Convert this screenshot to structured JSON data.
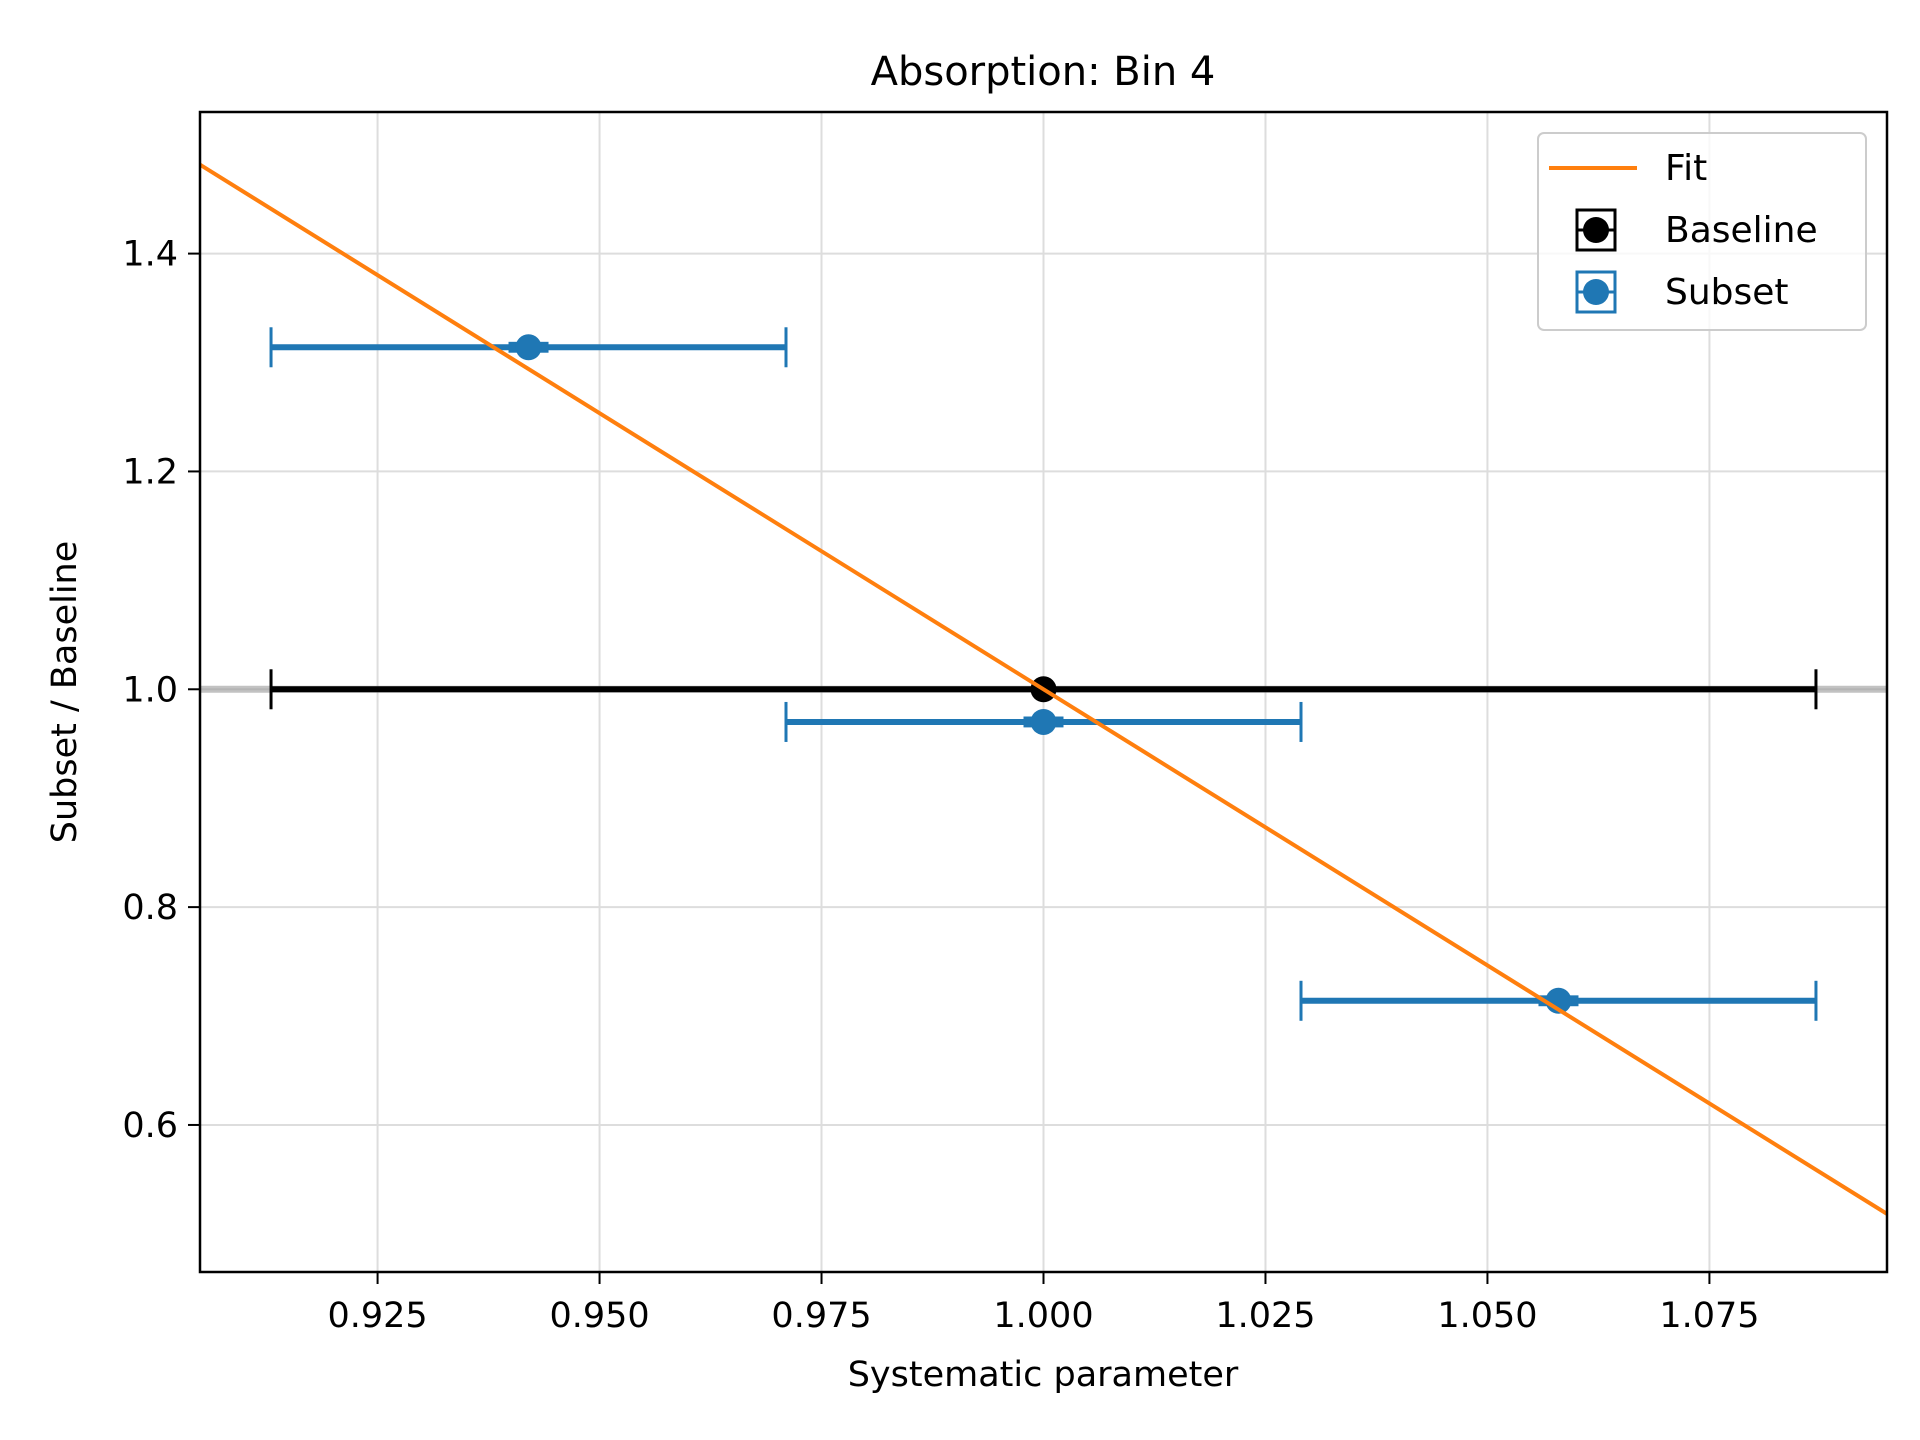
{
  "chart_data": {
    "type": "scatter",
    "title": "Absorption: Bin 4",
    "xlabel": "Systematic parameter",
    "ylabel": "Subset / Baseline",
    "xlim": [
      0.905,
      1.095
    ],
    "ylim": [
      0.465,
      1.53
    ],
    "xticks": [
      0.925,
      0.95,
      0.975,
      1.0,
      1.025,
      1.05,
      1.075
    ],
    "xtick_labels": [
      "0.925",
      "0.950",
      "0.975",
      "1.000",
      "1.025",
      "1.050",
      "1.075"
    ],
    "yticks": [
      0.6,
      0.8,
      1.0,
      1.2,
      1.4
    ],
    "ytick_labels": [
      "0.6",
      "0.8",
      "1.0",
      "1.2",
      "1.4"
    ],
    "grid": true,
    "reference_line_y": 1.0,
    "legend_position": "top-right",
    "fit": {
      "name": "Fit",
      "color": "#ff7f0e",
      "slope": -5.07,
      "intercept": 6.07
    },
    "series": [
      {
        "name": "Baseline",
        "color": "#000000",
        "points": [
          {
            "x": 1.0,
            "y": 1.0,
            "xerr": 0.087,
            "yerr": 0.0
          }
        ]
      },
      {
        "name": "Subset",
        "color": "#1f77b4",
        "points": [
          {
            "x": 0.942,
            "y": 1.314,
            "xerr": 0.029,
            "yerr": 0.005
          },
          {
            "x": 1.0,
            "y": 0.97,
            "xerr": 0.029,
            "yerr": 0.005
          },
          {
            "x": 1.058,
            "y": 0.714,
            "xerr": 0.029,
            "yerr": 0.005
          }
        ]
      }
    ]
  }
}
